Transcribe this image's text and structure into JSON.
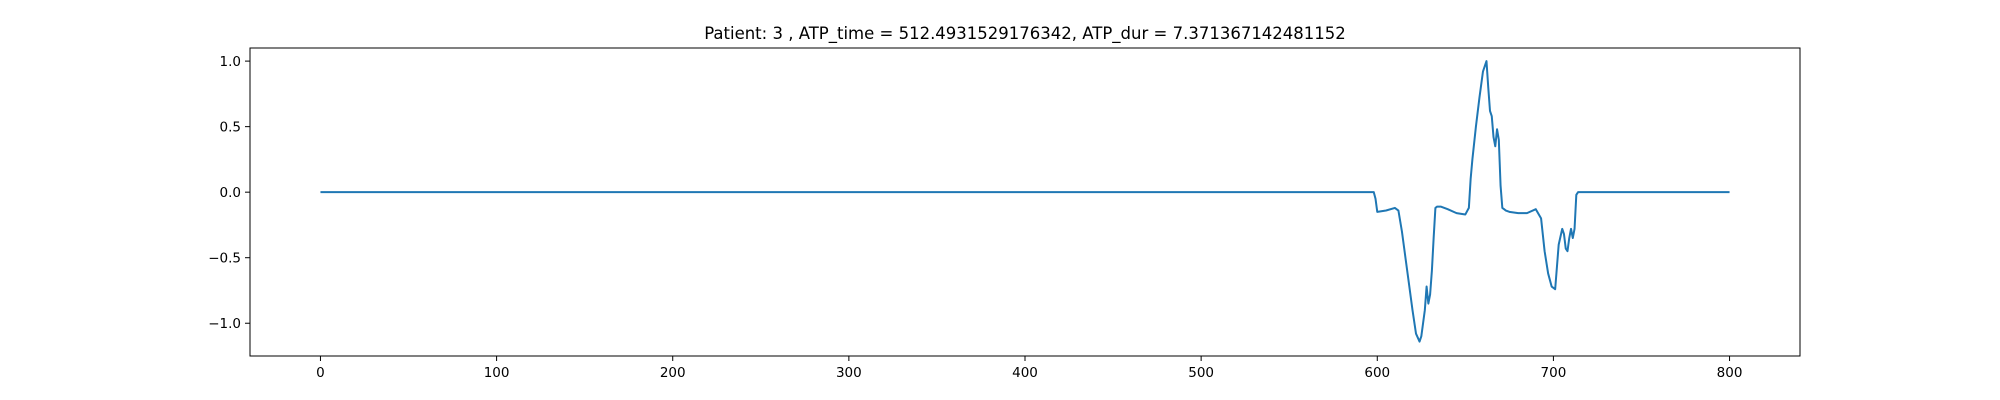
{
  "chart_data": {
    "type": "line",
    "title": "Patient: 3 , ATP_time = 512.4931529176342, ATP_dur = 7.371367142481152",
    "xlabel": "",
    "ylabel": "",
    "xlim": [
      -40,
      840
    ],
    "ylim": [
      -1.25,
      1.1
    ],
    "x_ticks": [
      0,
      100,
      200,
      300,
      400,
      500,
      600,
      700,
      800
    ],
    "x_tick_labels": [
      "0",
      "100",
      "200",
      "300",
      "400",
      "500",
      "600",
      "700",
      "800"
    ],
    "y_ticks": [
      1.0,
      0.5,
      0.0,
      -0.5,
      -1.0
    ],
    "y_tick_labels": [
      "1.0",
      "0.5",
      "0.0",
      "−0.5",
      "−1.0"
    ],
    "grid": false,
    "series": [
      {
        "color": "#1f77b4",
        "x": [
          0,
          100,
          200,
          300,
          400,
          500,
          598,
          599,
          600,
          605,
          610,
          612,
          614,
          616,
          618,
          620,
          622,
          624,
          625,
          626,
          627,
          628,
          629,
          630,
          631,
          632,
          633,
          634,
          636,
          640,
          645,
          650,
          652,
          653,
          654,
          656,
          658,
          660,
          662,
          663,
          664,
          665,
          666,
          667,
          668,
          669,
          670,
          671,
          672,
          673,
          675,
          680,
          685,
          690,
          693,
          695,
          697,
          699,
          701,
          703,
          705,
          706,
          707,
          708,
          709,
          710,
          711,
          712,
          713,
          714,
          715,
          716,
          717,
          720,
          760,
          800
        ],
        "y": [
          0,
          0,
          0,
          0,
          0,
          0,
          0,
          -0.05,
          -0.15,
          -0.14,
          -0.12,
          -0.14,
          -0.3,
          -0.5,
          -0.7,
          -0.9,
          -1.08,
          -1.14,
          -1.1,
          -1.0,
          -0.9,
          -0.72,
          -0.85,
          -0.78,
          -0.6,
          -0.35,
          -0.12,
          -0.11,
          -0.11,
          -0.13,
          -0.16,
          -0.17,
          -0.12,
          0.1,
          0.25,
          0.5,
          0.72,
          0.92,
          1.0,
          0.8,
          0.62,
          0.58,
          0.42,
          0.35,
          0.48,
          0.4,
          0.05,
          -0.12,
          -0.13,
          -0.14,
          -0.15,
          -0.16,
          -0.16,
          -0.13,
          -0.2,
          -0.45,
          -0.62,
          -0.72,
          -0.74,
          -0.4,
          -0.28,
          -0.32,
          -0.43,
          -0.45,
          -0.35,
          -0.28,
          -0.35,
          -0.28,
          -0.02,
          0.0,
          0,
          0,
          0,
          0,
          0,
          0
        ]
      }
    ]
  }
}
